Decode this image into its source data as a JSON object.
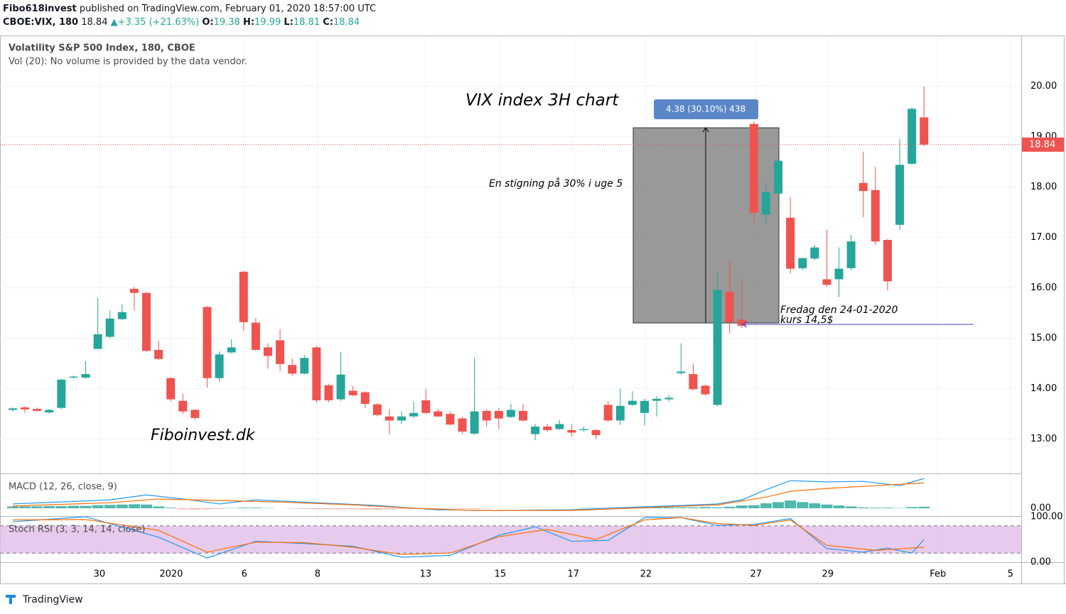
{
  "header": {
    "publisher": "Fibo618invest",
    "published": "published on TradingView.com, February 01, 2020 18:57:00 UTC",
    "symbol": "CBOE:VIX, 180",
    "arrow": "▲",
    "change": "+3.35 (+21.63%)",
    "o": "O:",
    "h": "H:",
    "l": "L:",
    "c": "C:"
  },
  "legend": {
    "main": "Volatility S&P 500 Index, 180, CBOE",
    "vol": "Vol (20): No volume is provided by the data vendor.",
    "macd": "MACD (12, 26, close, 9)",
    "stoch": "Stoch RSI (3, 3, 14, 14, close)"
  },
  "footer": {
    "brand": "TradingView"
  },
  "annotations": {
    "title": "VIX index 3H chart",
    "rise": "En stigning på 30% i uge 5",
    "measure": "4.38 (30.10%) 438",
    "note1": "Fredag den 24-01-2020",
    "note2": "kurs 14,5$",
    "site": "Fiboinvest.dk"
  },
  "chart_data": [
    {
      "type": "candlestick",
      "up_color": "#26a69a",
      "down_color": "#ef5350",
      "open": [
        13.58,
        13.63,
        13.6,
        13.53,
        13.62,
        14.22,
        14.22,
        14.79,
        15.03,
        15.38,
        15.98,
        15.9,
        14.77,
        14.21,
        13.76,
        13.58,
        15.62,
        14.21,
        14.72,
        16.32,
        15.31,
        14.82,
        14.96,
        14.47,
        14.3,
        14.82,
        14.07,
        13.79,
        13.96,
        13.93,
        13.69,
        13.45,
        13.37,
        13.45,
        13.77,
        13.55,
        13.5,
        13.41,
        13.11,
        13.56,
        13.56,
        13.44,
        13.56,
        13.1,
        13.25,
        13.2,
        13.18,
        13.18,
        13.18,
        13.68,
        13.37,
        13.68,
        13.52,
        13.76,
        13.79,
        14.31,
        14.29,
        14.06,
        13.68,
        15.92,
        15.37,
        19.25,
        17.45,
        17.87,
        17.39,
        16.39,
        16.58,
        16.17,
        16.17,
        16.39,
        18.08,
        17.94,
        16.95,
        17.25,
        18.46,
        19.38
      ],
      "high": [
        13.63,
        13.66,
        13.63,
        13.6,
        14.2,
        14.26,
        14.55,
        15.8,
        15.55,
        15.67,
        16.02,
        15.92,
        14.95,
        14.23,
        13.9,
        13.6,
        15.64,
        14.74,
        14.98,
        16.34,
        15.4,
        14.9,
        15.18,
        14.6,
        14.67,
        14.85,
        14.1,
        14.73,
        14.05,
        13.95,
        13.72,
        13.6,
        13.55,
        13.75,
        14.0,
        13.6,
        13.55,
        13.45,
        14.62,
        13.6,
        13.62,
        13.7,
        13.7,
        13.3,
        13.3,
        13.38,
        13.3,
        13.25,
        13.2,
        13.75,
        14.0,
        13.95,
        13.8,
        13.85,
        13.88,
        14.9,
        14.5,
        14.08,
        16.3,
        16.55,
        16.18,
        19.3,
        18.1,
        18.55,
        17.8,
        16.6,
        16.85,
        17.15,
        16.8,
        17.05,
        18.7,
        18.4,
        16.97,
        18.95,
        19.58,
        19.99
      ],
      "low": [
        13.55,
        13.52,
        13.55,
        13.5,
        13.6,
        14.2,
        14.2,
        14.78,
        15.0,
        15.36,
        15.55,
        14.73,
        14.57,
        13.75,
        13.5,
        13.38,
        14.02,
        14.14,
        14.7,
        15.15,
        14.75,
        14.4,
        14.35,
        14.25,
        14.28,
        13.72,
        13.73,
        13.76,
        13.85,
        13.62,
        13.45,
        13.1,
        13.3,
        13.42,
        13.5,
        13.44,
        13.27,
        13.1,
        13.08,
        13.25,
        13.2,
        13.42,
        13.35,
        12.98,
        13.15,
        13.18,
        13.05,
        13.15,
        13.0,
        13.35,
        13.28,
        13.65,
        13.27,
        13.45,
        13.75,
        14.28,
        13.97,
        13.86,
        13.65,
        15.1,
        15.2,
        17.3,
        17.25,
        17.85,
        16.28,
        16.35,
        16.55,
        16.02,
        15.82,
        16.35,
        17.4,
        16.85,
        15.95,
        17.15,
        18.44,
        18.81
      ],
      "close": [
        13.61,
        13.59,
        13.56,
        13.58,
        14.18,
        14.24,
        14.29,
        15.08,
        15.39,
        15.52,
        15.9,
        14.75,
        14.59,
        13.79,
        13.55,
        13.42,
        14.21,
        14.68,
        14.82,
        15.32,
        14.77,
        14.65,
        14.49,
        14.3,
        14.61,
        13.77,
        13.77,
        14.28,
        13.87,
        13.7,
        13.48,
        13.37,
        13.45,
        13.52,
        13.52,
        13.45,
        13.29,
        13.15,
        13.55,
        13.37,
        13.41,
        13.58,
        13.37,
        13.25,
        13.18,
        13.3,
        13.13,
        13.2,
        13.08,
        13.37,
        13.66,
        13.76,
        13.76,
        13.8,
        13.82,
        14.34,
        13.99,
        13.89,
        15.96,
        15.32,
        15.25,
        17.49,
        17.9,
        18.52,
        16.38,
        16.59,
        16.8,
        16.06,
        16.38,
        16.92,
        17.92,
        16.92,
        16.13,
        18.44,
        19.55,
        18.84
      ],
      "ylim": [
        12.32,
        20.99
      ],
      "yticks": [
        {
          "value": 13,
          "label": "13.00"
        },
        {
          "value": 14,
          "label": "14.00"
        },
        {
          "value": 15,
          "label": "15.00"
        },
        {
          "value": 16,
          "label": "16.00"
        },
        {
          "value": 17,
          "label": "17.00"
        },
        {
          "value": 18,
          "label": "18.00"
        },
        {
          "value": 19,
          "label": "19.00"
        },
        {
          "value": 20,
          "label": "20.00"
        }
      ],
      "xlim": [
        -1.05,
        83
      ],
      "xticks": [
        {
          "value": 7.13,
          "label": "30"
        },
        {
          "value": 13.04,
          "label": "2020"
        },
        {
          "value": 19.06,
          "label": "6"
        },
        {
          "value": 25.09,
          "label": "8"
        },
        {
          "value": 33.98,
          "label": "13"
        },
        {
          "value": 40.12,
          "label": "15"
        },
        {
          "value": 46.14,
          "label": "17"
        },
        {
          "value": 52.11,
          "label": "22"
        },
        {
          "value": 61.17,
          "label": "27"
        },
        {
          "value": 67.08,
          "label": "29"
        },
        {
          "value": 76.14,
          "label": "Feb"
        },
        {
          "value": 82.11,
          "label": "5"
        }
      ],
      "grid": true
    },
    {
      "type": "macd",
      "ylim": [
        -0.25,
        1.1
      ],
      "yticks": [
        {
          "value": 0,
          "label": "0.00"
        }
      ],
      "histogram": {
        "up_color": "#26a69a",
        "down_color": "#ef9a9a",
        "values": [
          0.06,
          0.06,
          0.06,
          0.07,
          0.07,
          0.08,
          0.08,
          0.1,
          0.11,
          0.12,
          0.13,
          0.12,
          0.06,
          0.02,
          -0.03,
          -0.04,
          -0.03,
          -0.02,
          0.01,
          0.02,
          0.02,
          0.01,
          0,
          -0.01,
          -0.02,
          -0.03,
          -0.03,
          -0.03,
          -0.03,
          -0.04,
          -0.04,
          -0.03,
          -0.02,
          -0.02,
          -0.01,
          -0.01,
          -0.01,
          -0.02,
          -0.02,
          -0.01,
          0,
          0,
          0,
          0,
          0,
          0,
          0,
          0.01,
          0.01,
          0.01,
          0.02,
          0.02,
          0.03,
          0.03,
          0.03,
          0.03,
          0.03,
          0.04,
          0.03,
          0.05,
          0.09,
          0.1,
          0.16,
          0.2,
          0.25,
          0.2,
          0.16,
          0.12,
          0.09,
          0.06,
          0.03,
          0.02,
          0.02,
          0.01,
          0.04,
          0.05
        ]
      },
      "series": [
        {
          "color": "#2196f3",
          "x": [
            0,
            8,
            11,
            14,
            17,
            20,
            25,
            30,
            35,
            40,
            46,
            50,
            55,
            58,
            60,
            62,
            64,
            67,
            70,
            73,
            75
          ],
          "values": [
            0.14,
            0.27,
            0.43,
            0.3,
            0.14,
            0.27,
            0.18,
            0.09,
            -0.05,
            -0.07,
            -0.05,
            0.02,
            0.09,
            0.14,
            0.27,
            0.6,
            0.89,
            0.85,
            0.87,
            0.73,
            0.96
          ]
        },
        {
          "color": "#ff6d00",
          "x": [
            0,
            8,
            12,
            17,
            22,
            28,
            33,
            38,
            46,
            52,
            58,
            62,
            64,
            67,
            71,
            75
          ],
          "values": [
            0.07,
            0.18,
            0.3,
            0.25,
            0.2,
            0.11,
            0,
            -0.07,
            -0.07,
            0.02,
            0.11,
            0.36,
            0.55,
            0.64,
            0.73,
            0.82
          ]
        }
      ]
    },
    {
      "type": "stoch_rsi",
      "ylim": [
        0,
        100
      ],
      "yticks": [
        {
          "value": 0,
          "label": "0.00"
        },
        {
          "value": 100,
          "label": "100.00"
        }
      ],
      "bands": [
        20,
        80
      ],
      "band_color": "#e1bee7",
      "series": [
        {
          "color": "#2196f3",
          "x": [
            0,
            6,
            12,
            16,
            20,
            24,
            28,
            32,
            36,
            40,
            43,
            46,
            49,
            52,
            55,
            58,
            61,
            64,
            67,
            70,
            72,
            74,
            75
          ],
          "values": [
            89,
            100,
            55,
            9,
            46,
            41,
            35,
            11,
            15,
            59,
            78,
            46,
            48,
            98,
            98,
            81,
            83,
            96,
            30,
            22,
            31,
            20,
            50
          ]
        },
        {
          "color": "#ff6d00",
          "x": [
            0,
            6,
            12,
            16,
            20,
            24,
            28,
            32,
            36,
            40,
            44,
            48,
            52,
            55,
            58,
            61,
            64,
            67,
            71,
            75
          ],
          "values": [
            93,
            94,
            70,
            22,
            44,
            43,
            33,
            17,
            20,
            56,
            72,
            50,
            93,
            98,
            85,
            81,
            93,
            37,
            26,
            33
          ]
        }
      ]
    }
  ]
}
